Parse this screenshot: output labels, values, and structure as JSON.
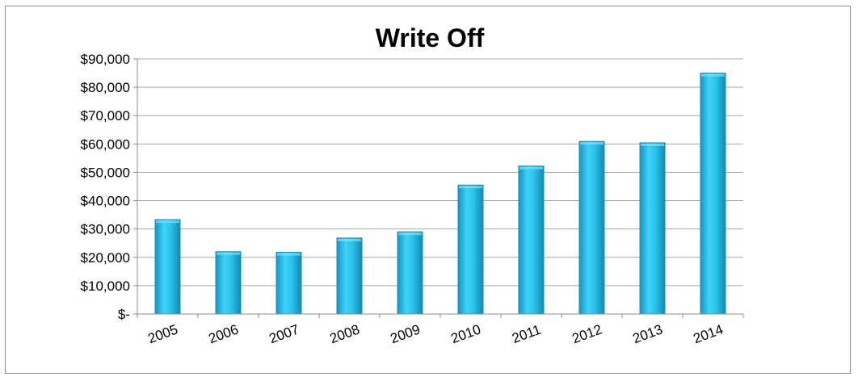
{
  "chart_data": {
    "type": "bar",
    "title": "Write Off",
    "xlabel": "",
    "ylabel": "",
    "categories": [
      "2005",
      "2006",
      "2007",
      "2008",
      "2009",
      "2010",
      "2011",
      "2012",
      "2013",
      "2014"
    ],
    "values": [
      33300,
      22000,
      21800,
      26800,
      29000,
      45500,
      52200,
      60900,
      60400,
      85000
    ],
    "ylim": [
      0,
      90000
    ],
    "y_ticks": [
      0,
      10000,
      20000,
      30000,
      40000,
      50000,
      60000,
      70000,
      80000,
      90000
    ],
    "y_tick_labels": [
      "$-",
      "$10,000",
      "$20,000",
      "$30,000",
      "$40,000",
      "$50,000",
      "$60,000",
      "$70,000",
      "$80,000",
      "$90,000"
    ],
    "grid": true,
    "legend": "none",
    "colors": {
      "bar": "#29c3ee",
      "bar_edge": "#1a8fb5",
      "grid": "#a6a6a6",
      "axis": "#8c8c8c"
    }
  }
}
